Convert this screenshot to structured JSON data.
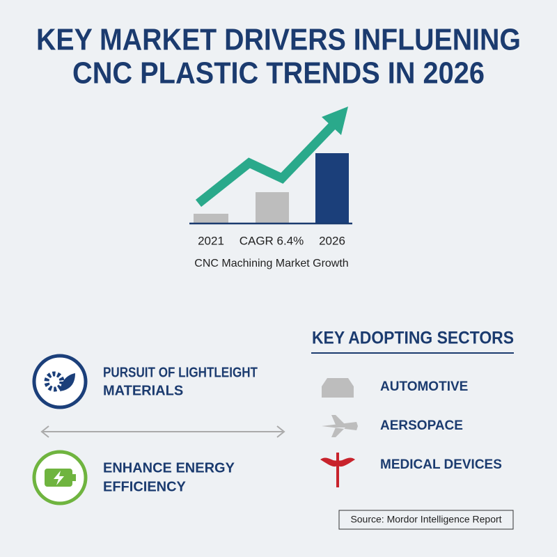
{
  "header": {
    "title_lines": [
      "KEY MARKET DRIVERS INFLUENING",
      "CNC PLASTIC TRENDS IN 2026"
    ]
  },
  "growth_graphic": {
    "labels": [
      "2021",
      "CAGR 6.4%",
      "2026"
    ],
    "caption": "CNC Machining Market Growth"
  },
  "drivers": [
    {
      "lines": [
        "PURSUIT OF LIGHTLEIGHT",
        "MATERIALS"
      ]
    },
    {
      "lines": [
        "ENHANCE ENERGY",
        "EFFICIENCY"
      ]
    }
  ],
  "sectors": {
    "heading": "KEY ADOPTING SECTORS",
    "items": [
      "AUTOMOTIVE",
      "AERSOPACE",
      "MEDICAL DEVICES"
    ]
  },
  "source": "Source: Mordor Intelligence Report"
}
